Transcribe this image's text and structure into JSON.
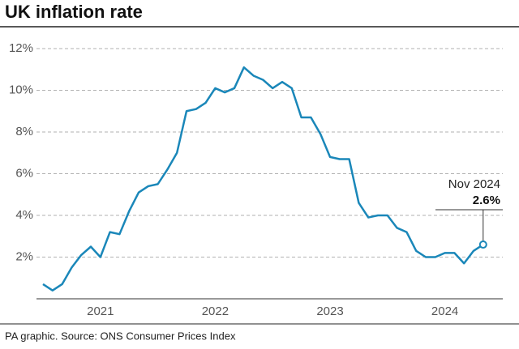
{
  "chart_data": {
    "type": "line",
    "title": "UK inflation rate",
    "source": "PA graphic. Source: ONS Consumer Prices Index",
    "categories": [
      null,
      null,
      null,
      null,
      null,
      null,
      "2021",
      null,
      null,
      null,
      null,
      null,
      null,
      null,
      null,
      null,
      null,
      null,
      "2022",
      null,
      null,
      null,
      null,
      null,
      null,
      null,
      null,
      null,
      null,
      null,
      "2023",
      null,
      null,
      null,
      null,
      null,
      null,
      null,
      null,
      null,
      null,
      null,
      "2024",
      null,
      null,
      null,
      null
    ],
    "series": [
      {
        "color": "#1a87b9",
        "values": [
          0.7,
          0.4,
          0.7,
          1.5,
          2.1,
          2.5,
          2.0,
          3.2,
          3.1,
          4.2,
          5.1,
          5.4,
          5.5,
          6.2,
          7.0,
          9.0,
          9.1,
          9.4,
          10.1,
          9.9,
          10.1,
          11.1,
          10.7,
          10.5,
          10.1,
          10.4,
          10.1,
          8.7,
          8.7,
          7.9,
          6.8,
          6.7,
          6.7,
          4.6,
          3.9,
          4.0,
          4.0,
          3.4,
          3.2,
          2.3,
          2.0,
          2.0,
          2.2,
          2.2,
          1.7,
          2.3,
          2.6
        ],
        "value_labels": [
          null,
          null,
          null,
          null,
          null,
          null,
          null,
          null,
          null,
          null,
          null,
          null,
          null,
          null,
          null,
          null,
          null,
          null,
          null,
          null,
          null,
          null,
          null,
          null,
          null,
          null,
          null,
          null,
          null,
          null,
          null,
          null,
          null,
          null,
          null,
          null,
          null,
          null,
          null,
          null,
          null,
          null,
          null,
          null,
          null,
          null,
          "2.6%"
        ]
      }
    ],
    "annotation": "Nov 2024",
    "ylim": [
      0,
      12
    ],
    "yticks": [
      {
        "value": 2,
        "label": "2%"
      },
      {
        "value": 4,
        "label": "4%"
      },
      {
        "value": 6,
        "label": "6%"
      },
      {
        "value": 8,
        "label": "8%"
      },
      {
        "value": 10,
        "label": "10%"
      },
      {
        "value": 12,
        "label": "12%"
      }
    ],
    "grid": true
  }
}
